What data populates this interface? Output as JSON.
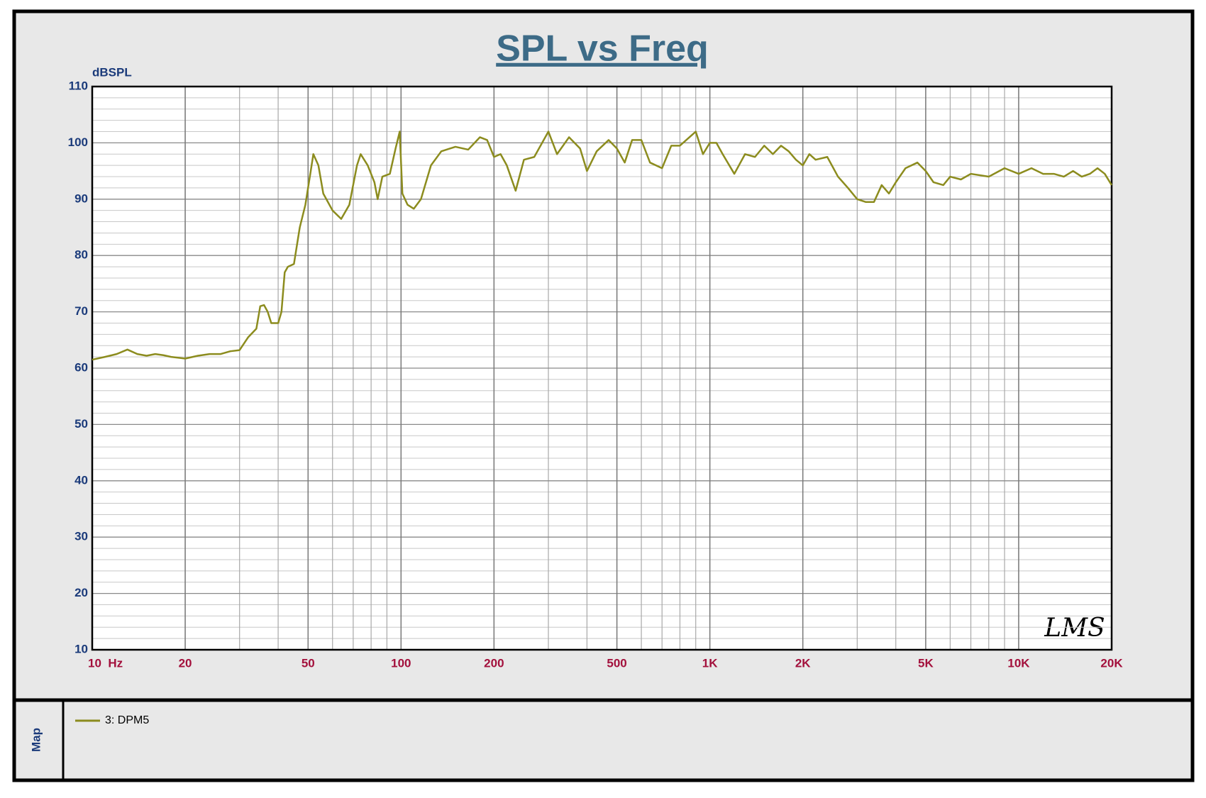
{
  "chart_data": {
    "type": "line",
    "title": "SPL vs Freq",
    "y_label": "dBSPL",
    "legend_panel_label": "Map",
    "logo": "LMS",
    "x": [
      10,
      11,
      12,
      13,
      14,
      15,
      16,
      17,
      18,
      20,
      22,
      24,
      26,
      28,
      30,
      32,
      34,
      35,
      36,
      37,
      38,
      40,
      41,
      42,
      43,
      45,
      47,
      49,
      51,
      52,
      54,
      56,
      60,
      64,
      68,
      72,
      74,
      78,
      82,
      84,
      87,
      92,
      96,
      99,
      101,
      105,
      110,
      116,
      125,
      135,
      150,
      165,
      180,
      190,
      200,
      210,
      220,
      235,
      250,
      270,
      300,
      320,
      350,
      380,
      400,
      430,
      470,
      500,
      530,
      560,
      600,
      640,
      700,
      750,
      800,
      900,
      950,
      1000,
      1050,
      1100,
      1200,
      1300,
      1400,
      1500,
      1600,
      1700,
      1800,
      1900,
      2000,
      2100,
      2200,
      2400,
      2600,
      2800,
      3000,
      3200,
      3400,
      3600,
      3800,
      4000,
      4300,
      4700,
      5000,
      5300,
      5700,
      6000,
      6500,
      7000,
      8000,
      9000,
      10000,
      11000,
      12000,
      13000,
      14000,
      15000,
      16000,
      17000,
      18000,
      19000,
      20000
    ],
    "series": [
      {
        "name": "3: DPM5",
        "color": "#8c8c1e",
        "values": [
          61.5,
          62,
          62.5,
          63.3,
          62.5,
          62.2,
          62.5,
          62.3,
          62,
          61.7,
          62.2,
          62.5,
          62.5,
          63,
          63.2,
          65.5,
          67,
          71,
          71.2,
          70,
          68,
          68,
          70,
          77,
          78,
          78.5,
          85,
          89,
          95,
          98,
          96,
          91,
          88,
          86.5,
          89,
          96,
          98,
          96,
          93,
          90,
          94,
          94.5,
          99,
          102,
          91,
          89,
          88.3,
          90,
          96,
          98.5,
          99.3,
          98.8,
          101,
          100.5,
          97.5,
          98,
          96,
          91.5,
          97,
          97.5,
          102,
          98,
          101,
          99,
          95,
          98.5,
          100.5,
          99,
          96.5,
          100.5,
          100.5,
          96.5,
          95.5,
          99.5,
          99.5,
          102,
          98,
          100,
          100,
          98,
          94.5,
          98,
          97.5,
          99.5,
          98,
          99.5,
          98.5,
          97,
          96,
          98,
          97,
          97.5,
          94,
          92,
          90,
          89.5,
          89.5,
          92.5,
          91,
          93,
          95.5,
          96.5,
          95,
          93,
          92.5,
          94,
          93.5,
          94.5,
          94,
          95.5,
          94.5,
          95.5,
          94.5,
          94.5,
          94,
          95,
          94,
          94.5,
          95.5,
          94.5,
          92.5
        ]
      }
    ],
    "xscale": "log",
    "xlim": [
      10,
      20000
    ],
    "ylim": [
      10,
      110
    ],
    "xticks": [
      {
        "value": 10,
        "label": "10  Hz"
      },
      20,
      50,
      100,
      200,
      500,
      {
        "value": 1000,
        "label": "1K"
      },
      {
        "value": 2000,
        "label": "2K"
      },
      {
        "value": 5000,
        "label": "5K"
      },
      {
        "value": 10000,
        "label": "10K"
      },
      {
        "value": 20000,
        "label": "20K"
      }
    ],
    "yticks": [
      10,
      20,
      30,
      40,
      50,
      60,
      70,
      80,
      90,
      100,
      110
    ],
    "grid": true
  }
}
